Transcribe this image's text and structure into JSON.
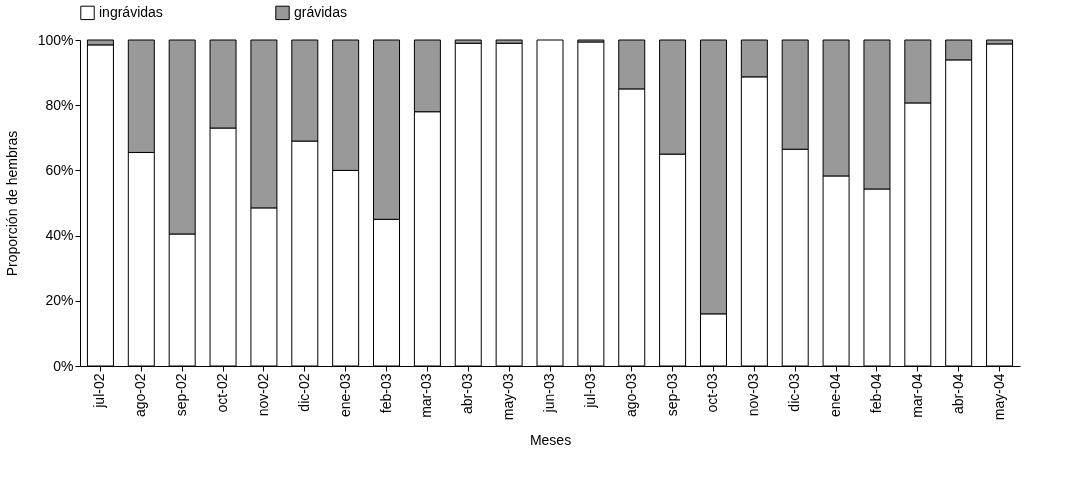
{
  "chart_data": {
    "type": "bar",
    "stacked": true,
    "xlabel": "Meses",
    "ylabel": "Proporción de hembras",
    "categories": [
      "jul-02",
      "ago-02",
      "sep-02",
      "oct-02",
      "nov-02",
      "dic-02",
      "ene-03",
      "feb-03",
      "mar-03",
      "abr-03",
      "may-03",
      "jun-03",
      "jul-03",
      "ago-03",
      "sep-03",
      "oct-03",
      "nov-03",
      "dic-03",
      "ene-04",
      "feb-04",
      "mar-04",
      "abr-04",
      "may-04"
    ],
    "series": [
      {
        "name": "ingrávidas",
        "color": "#ffffff",
        "values": [
          98.5,
          65.5,
          40.5,
          73,
          48.5,
          69,
          60,
          45,
          78,
          99,
          99,
          100,
          99.4,
          85,
          65,
          16,
          88.7,
          66.5,
          58.3,
          54.3,
          80.7,
          93.9,
          98.8
        ]
      },
      {
        "name": "grávidas",
        "color": "#999999",
        "values": [
          1.5,
          34.5,
          59.5,
          27,
          51.5,
          31,
          40,
          55,
          22,
          1,
          1,
          null,
          0.6,
          15,
          35,
          84,
          11.3,
          33.5,
          41.7,
          45.7,
          19.3,
          6.1,
          1.2
        ]
      }
    ],
    "ylim": [
      0,
      100
    ],
    "yticks": [
      {
        "value": 0,
        "label": "0%"
      },
      {
        "value": 20,
        "label": "20%"
      },
      {
        "value": 40,
        "label": "40%"
      },
      {
        "value": 60,
        "label": "60%"
      },
      {
        "value": 80,
        "label": "80%"
      },
      {
        "value": 100,
        "label": "100%"
      }
    ],
    "grid": false,
    "legend": "top"
  }
}
